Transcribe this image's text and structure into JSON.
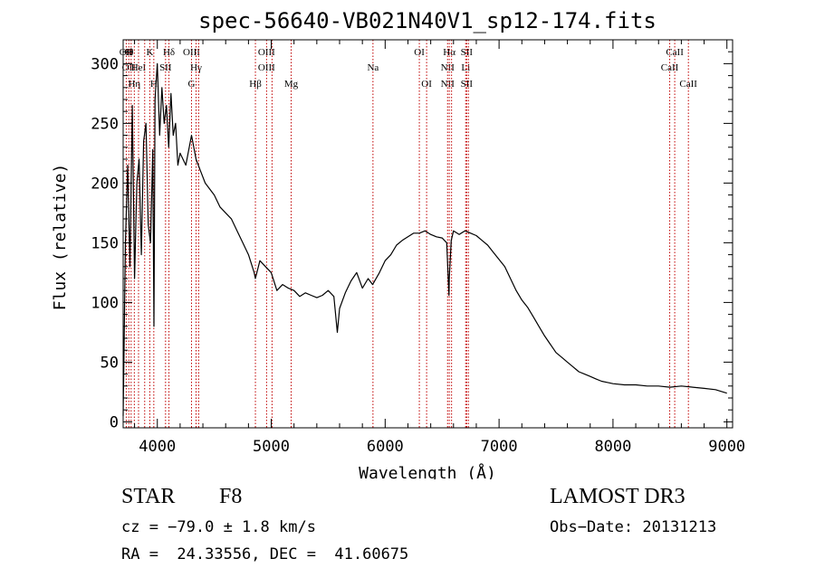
{
  "chart_data": {
    "type": "line",
    "title": "spec-56640-VB021N40V1_sp12-174.fits",
    "xlabel": "Wavelength (Å)",
    "ylabel": "Flux (relative)",
    "xlim": [
      3700,
      9050
    ],
    "ylim": [
      -5,
      320
    ],
    "xticks": [
      4000,
      5000,
      6000,
      7000,
      8000,
      9000
    ],
    "xtick_labels": [
      "4000",
      "5000",
      "6000",
      "7000",
      "8000",
      "9000"
    ],
    "yticks": [
      0,
      50,
      100,
      150,
      200,
      250,
      300
    ],
    "ytick_labels": [
      "0",
      "50",
      "100",
      "150",
      "200",
      "250",
      "300"
    ],
    "grid": false,
    "series": [
      {
        "name": "flux",
        "color": "#000000",
        "x": [
          3700,
          3720,
          3740,
          3760,
          3780,
          3800,
          3820,
          3840,
          3860,
          3880,
          3900,
          3920,
          3940,
          3960,
          3970,
          3980,
          4000,
          4020,
          4040,
          4060,
          4080,
          4100,
          4120,
          4140,
          4160,
          4180,
          4200,
          4250,
          4300,
          4340,
          4380,
          4420,
          4460,
          4500,
          4550,
          4600,
          4650,
          4700,
          4750,
          4800,
          4850,
          4861,
          4900,
          4950,
          5000,
          5050,
          5100,
          5150,
          5200,
          5250,
          5300,
          5350,
          5400,
          5450,
          5500,
          5550,
          5580,
          5600,
          5650,
          5700,
          5750,
          5800,
          5850,
          5890,
          5950,
          6000,
          6050,
          6100,
          6150,
          6200,
          6250,
          6300,
          6350,
          6400,
          6450,
          6500,
          6540,
          6560,
          6563,
          6580,
          6600,
          6650,
          6700,
          6750,
          6800,
          6850,
          6900,
          6950,
          7000,
          7050,
          7100,
          7150,
          7200,
          7250,
          7300,
          7350,
          7400,
          7450,
          7500,
          7550,
          7600,
          7650,
          7700,
          7750,
          7800,
          7850,
          7900,
          7950,
          8000,
          8100,
          8200,
          8300,
          8400,
          8500,
          8600,
          8700,
          8800,
          8900,
          9000
        ],
        "values": [
          5,
          150,
          215,
          130,
          265,
          120,
          200,
          220,
          140,
          235,
          250,
          165,
          150,
          228,
          80,
          270,
          300,
          240,
          280,
          250,
          265,
          230,
          275,
          240,
          250,
          215,
          225,
          215,
          240,
          220,
          210,
          200,
          195,
          190,
          180,
          175,
          170,
          160,
          150,
          140,
          125,
          120,
          135,
          130,
          125,
          110,
          115,
          112,
          110,
          105,
          108,
          106,
          104,
          106,
          110,
          105,
          75,
          95,
          108,
          118,
          125,
          112,
          120,
          115,
          125,
          135,
          140,
          148,
          152,
          155,
          158,
          158,
          160,
          157,
          155,
          154,
          150,
          106,
          120,
          152,
          160,
          157,
          160,
          158,
          156,
          152,
          148,
          142,
          136,
          130,
          120,
          110,
          102,
          96,
          88,
          80,
          72,
          65,
          58,
          54,
          50,
          46,
          42,
          40,
          38,
          36,
          34,
          33,
          32,
          31,
          31,
          30,
          30,
          29,
          30,
          29,
          28,
          27,
          24
        ]
      }
    ],
    "lines": [
      {
        "wl": 3727,
        "labels": [
          "OII"
        ]
      },
      {
        "wl": 3750,
        "labels": [
          "H",
          "OII"
        ]
      },
      {
        "wl": 3770,
        "labels": [
          "θ"
        ]
      },
      {
        "wl": 3798,
        "labels": [
          "",
          "",
          "Hη"
        ]
      },
      {
        "wl": 3835,
        "labels": [
          "",
          "HeI"
        ]
      },
      {
        "wl": 3889,
        "labels": [
          ""
        ]
      },
      {
        "wl": 3934,
        "labels": [
          "K"
        ]
      },
      {
        "wl": 3969,
        "labels": [
          "",
          "",
          "H"
        ]
      },
      {
        "wl": 4102,
        "labels": [
          "Hδ"
        ]
      },
      {
        "wl": 4072,
        "labels": [
          "",
          "SII"
        ]
      },
      {
        "wl": 4300,
        "labels": [
          "OIII",
          "",
          "G"
        ]
      },
      {
        "wl": 4340,
        "labels": [
          "",
          "Hγ"
        ]
      },
      {
        "wl": 4363,
        "labels": [
          ""
        ]
      },
      {
        "wl": 4861,
        "labels": [
          "",
          "",
          "Hβ"
        ]
      },
      {
        "wl": 4959,
        "labels": [
          "OIII",
          "OIII"
        ]
      },
      {
        "wl": 5007,
        "labels": [
          ""
        ]
      },
      {
        "wl": 5175,
        "labels": [
          "",
          "",
          "Mg"
        ]
      },
      {
        "wl": 5893,
        "labels": [
          "",
          "Na"
        ]
      },
      {
        "wl": 6300,
        "labels": [
          "OI"
        ]
      },
      {
        "wl": 6364,
        "labels": [
          "",
          "",
          "OI"
        ]
      },
      {
        "wl": 6548,
        "labels": [
          "",
          "NII",
          "NII"
        ]
      },
      {
        "wl": 6563,
        "labels": [
          "Hα"
        ]
      },
      {
        "wl": 6583,
        "labels": [
          ""
        ]
      },
      {
        "wl": 6707,
        "labels": [
          "",
          "Li"
        ]
      },
      {
        "wl": 6716,
        "labels": [
          "SII",
          "",
          "SII"
        ]
      },
      {
        "wl": 6731,
        "labels": [
          ""
        ]
      },
      {
        "wl": 8498,
        "labels": [
          "",
          "CaII"
        ]
      },
      {
        "wl": 8542,
        "labels": [
          "CaII"
        ]
      },
      {
        "wl": 8662,
        "labels": [
          "",
          "",
          "CaII"
        ]
      }
    ]
  },
  "info": {
    "object_type": "STAR",
    "subclass": "F8",
    "survey": "LAMOST DR3",
    "cz": "cz = −79.0 ± 1.8 km/s",
    "obs_date": "Obs−Date: 20131213",
    "radec": "RA =  24.33556, DEC =  41.60675"
  },
  "colors": {
    "spectrum": "#000000",
    "line_marker": "#c00000",
    "axis": "#000000",
    "background": "#ffffff"
  }
}
